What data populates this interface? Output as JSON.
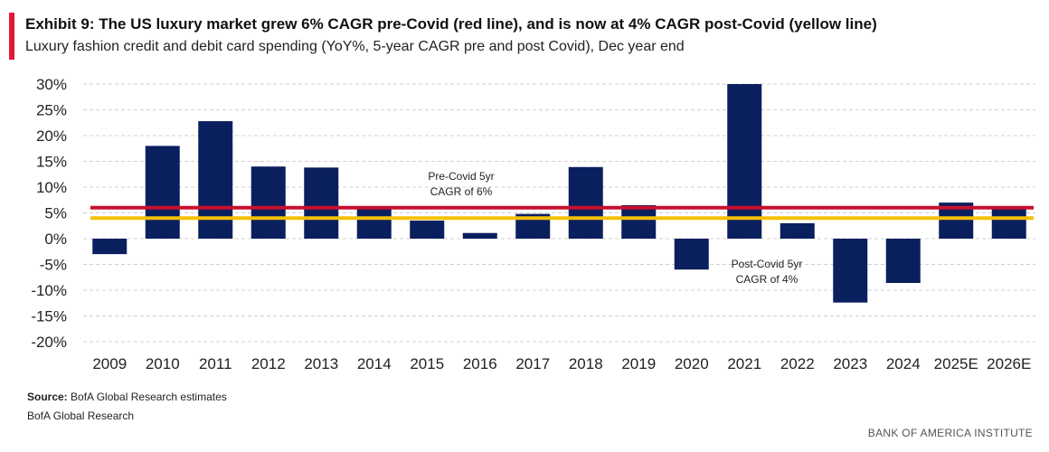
{
  "header": {
    "title": "Exhibit 9: The US luxury market grew 6% CAGR pre-Covid (red line), and is now at 4% CAGR post-Covid (yellow line)",
    "subtitle": "Luxury fashion credit and debit card spending (YoY%, 5-year CAGR pre and post Covid), Dec year end"
  },
  "footer": {
    "source_label": "Source:",
    "source_text": " BofA Global Research estimates",
    "credit": "BofA Global Research",
    "brand": "BANK OF AMERICA INSTITUTE"
  },
  "colors": {
    "accent": "#e31837",
    "bar": "#0a1f5e",
    "pre_covid_line": "#c8102e",
    "post_covid_line": "#f5c000",
    "grid": "#d0d0d0"
  },
  "chart_data": {
    "type": "bar",
    "categories": [
      "2009",
      "2010",
      "2011",
      "2012",
      "2013",
      "2014",
      "2015",
      "2016",
      "2017",
      "2018",
      "2019",
      "2020",
      "2021",
      "2022",
      "2023",
      "2024",
      "2025E",
      "2026E"
    ],
    "values": [
      -3,
      18,
      22.8,
      14,
      13.8,
      5.8,
      3.5,
      1.1,
      4.8,
      13.9,
      6.5,
      -6,
      30,
      3,
      -12.4,
      -8.6,
      7,
      6
    ],
    "ylim": [
      -20,
      30
    ],
    "yticks": [
      30,
      25,
      20,
      15,
      10,
      5,
      0,
      -5,
      -10,
      -15,
      -20
    ],
    "ytick_labels": [
      "30%",
      "25%",
      "20%",
      "15%",
      "10%",
      "5%",
      "0%",
      "-5%",
      "-10%",
      "-15%",
      "-20%"
    ],
    "grid": true,
    "reference_lines": [
      {
        "y": 6,
        "color": "#c8102e"
      },
      {
        "y": 4,
        "color": "#f5c000"
      }
    ],
    "annotations": [
      {
        "lines": [
          "Pre-Covid 5yr",
          "CAGR of 6%"
        ]
      },
      {
        "lines": [
          "Post-Covid 5yr",
          "CAGR of 4%"
        ]
      }
    ]
  }
}
